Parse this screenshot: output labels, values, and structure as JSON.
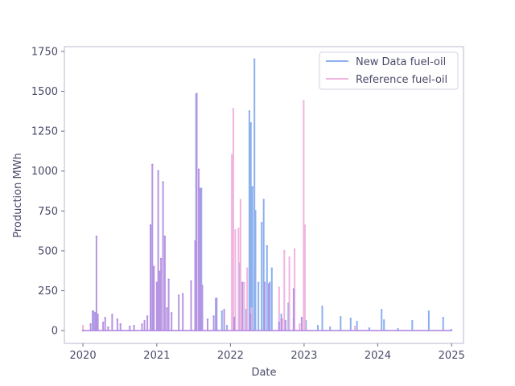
{
  "chart_data": {
    "type": "line",
    "xlabel": "Date",
    "ylabel": "Production MWh",
    "xlim": [
      "2019-10-01",
      "2025-03-01"
    ],
    "ylim": [
      -80,
      1780
    ],
    "x_ticks": [
      "2020",
      "2021",
      "2022",
      "2023",
      "2024",
      "2025"
    ],
    "y_ticks": [
      0,
      250,
      500,
      750,
      1000,
      1250,
      1500,
      1750
    ],
    "grid": false,
    "legend_position": "top-right",
    "series": [
      {
        "name": "New Data fuel-oil",
        "color": "#8cb0ee",
        "points": [
          [
            "2020-01-01",
            0
          ],
          [
            "2020-02-22",
            120
          ],
          [
            "2020-03-07",
            110
          ],
          [
            "2020-12-01",
            660
          ],
          [
            "2020-12-16",
            400
          ],
          [
            "2021-07-15",
            1480
          ],
          [
            "2021-08-10",
            890
          ],
          [
            "2021-10-20",
            200
          ],
          [
            "2021-11-20",
            120
          ],
          [
            "2021-12-15",
            30
          ],
          [
            "2022-02-15",
            420
          ],
          [
            "2022-03-20",
            130
          ],
          [
            "2022-04-05",
            1375
          ],
          [
            "2022-04-12",
            1300
          ],
          [
            "2022-04-20",
            900
          ],
          [
            "2022-04-30",
            1700
          ],
          [
            "2022-05-05",
            750
          ],
          [
            "2022-05-20",
            300
          ],
          [
            "2022-06-05",
            675
          ],
          [
            "2022-06-15",
            820
          ],
          [
            "2022-07-01",
            530
          ],
          [
            "2022-07-15",
            300
          ],
          [
            "2022-07-25",
            390
          ],
          [
            "2022-09-10",
            100
          ],
          [
            "2022-10-15",
            170
          ],
          [
            "2022-11-10",
            70
          ],
          [
            "2023-01-01",
            200
          ],
          [
            "2023-01-10",
            60
          ],
          [
            "2023-03-10",
            30
          ],
          [
            "2023-04-01",
            150
          ],
          [
            "2023-05-10",
            20
          ],
          [
            "2023-07-01",
            85
          ],
          [
            "2023-08-20",
            75
          ],
          [
            "2023-09-20",
            55
          ],
          [
            "2023-11-20",
            15
          ],
          [
            "2024-01-20",
            130
          ],
          [
            "2024-02-01",
            65
          ],
          [
            "2024-04-10",
            10
          ],
          [
            "2024-06-20",
            60
          ],
          [
            "2024-09-10",
            120
          ],
          [
            "2024-11-20",
            80
          ],
          [
            "2024-12-31",
            5
          ]
        ]
      },
      {
        "name": "Reference fuel-oil",
        "color": "#f0b4e0",
        "points": [
          [
            "2020-01-01",
            30
          ],
          [
            "2022-01-08",
            1100
          ],
          [
            "2022-01-15",
            1390
          ],
          [
            "2022-01-25",
            630
          ],
          [
            "2022-02-10",
            640
          ],
          [
            "2022-02-20",
            820
          ],
          [
            "2022-03-10",
            300
          ],
          [
            "2022-03-25",
            390
          ],
          [
            "2022-04-15",
            140
          ],
          [
            "2022-08-30",
            270
          ],
          [
            "2022-09-15",
            70
          ],
          [
            "2022-09-25",
            500
          ],
          [
            "2022-10-20",
            460
          ],
          [
            "2022-11-15",
            510
          ],
          [
            "2022-12-10",
            40
          ],
          [
            "2022-12-30",
            1440
          ],
          [
            "2023-01-05",
            660
          ],
          [
            "2023-09-10",
            25
          ]
        ]
      },
      {
        "name": "",
        "color": "#b48fe2",
        "points": [
          [
            "2020-01-01",
            0
          ],
          [
            "2020-02-08",
            40
          ],
          [
            "2020-02-18",
            120
          ],
          [
            "2020-03-01",
            110
          ],
          [
            "2020-03-08",
            590
          ],
          [
            "2020-03-15",
            100
          ],
          [
            "2020-04-10",
            50
          ],
          [
            "2020-04-20",
            80
          ],
          [
            "2020-05-05",
            20
          ],
          [
            "2020-05-25",
            100
          ],
          [
            "2020-06-20",
            70
          ],
          [
            "2020-07-05",
            40
          ],
          [
            "2020-08-20",
            25
          ],
          [
            "2020-09-10",
            30
          ],
          [
            "2020-10-20",
            40
          ],
          [
            "2020-11-01",
            60
          ],
          [
            "2020-11-15",
            90
          ],
          [
            "2020-12-01",
            660
          ],
          [
            "2020-12-10",
            1040
          ],
          [
            "2020-12-18",
            400
          ],
          [
            "2021-01-01",
            300
          ],
          [
            "2021-01-08",
            1000
          ],
          [
            "2021-01-15",
            370
          ],
          [
            "2021-01-22",
            450
          ],
          [
            "2021-02-01",
            930
          ],
          [
            "2021-02-10",
            590
          ],
          [
            "2021-02-20",
            140
          ],
          [
            "2021-03-01",
            320
          ],
          [
            "2021-03-15",
            110
          ],
          [
            "2021-04-20",
            220
          ],
          [
            "2021-05-10",
            230
          ],
          [
            "2021-06-20",
            310
          ],
          [
            "2021-07-10",
            560
          ],
          [
            "2021-07-18",
            1485
          ],
          [
            "2021-07-28",
            1010
          ],
          [
            "2021-08-05",
            890
          ],
          [
            "2021-08-15",
            280
          ],
          [
            "2021-09-10",
            70
          ],
          [
            "2021-10-10",
            90
          ],
          [
            "2021-10-25",
            200
          ],
          [
            "2021-12-01",
            130
          ],
          [
            "2022-01-20",
            80
          ],
          [
            "2022-03-01",
            300
          ],
          [
            "2022-04-10",
            100
          ],
          [
            "2022-06-20",
            300
          ],
          [
            "2022-07-10",
            290
          ],
          [
            "2022-08-30",
            50
          ],
          [
            "2022-09-10",
            70
          ],
          [
            "2022-10-01",
            60
          ],
          [
            "2022-11-10",
            260
          ],
          [
            "2022-12-20",
            80
          ]
        ]
      }
    ]
  },
  "legend": {
    "items": [
      {
        "label": "New Data fuel-oil",
        "color": "#8cb0ee"
      },
      {
        "label": "Reference fuel-oil",
        "color": "#f0b4e0"
      }
    ]
  }
}
